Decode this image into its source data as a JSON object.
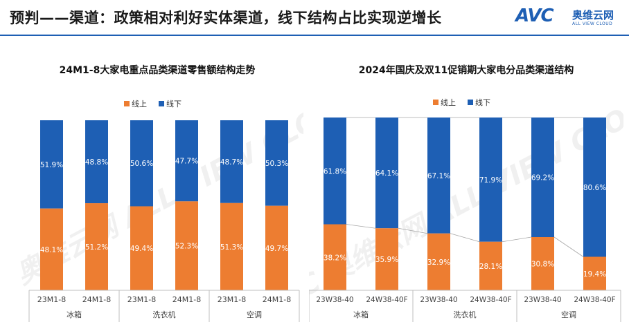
{
  "header": {
    "title": "预判——渠道：政策相对利好实体渠道，线下结构占比实现逆增长",
    "logo": {
      "brand": "AVC",
      "cn": "奥维云网",
      "en": "ALL VIEW CLOUD"
    }
  },
  "watermark": "AVC 奥维云网 ALL VIEW CLOUD",
  "colors": {
    "online": "#ed7d31",
    "offline": "#1e5fb4",
    "accent": "#1e5fb4"
  },
  "chart_data": [
    {
      "type": "bar",
      "stacked": true,
      "percent": true,
      "title": "24M1-8大家电重点品类渠道零售额结构走势",
      "legend_position": "top-center",
      "categories": [
        "23M1-8",
        "24M1-8",
        "23M1-8",
        "24M1-8",
        "23M1-8",
        "24M1-8"
      ],
      "groups": [
        {
          "label": "冰箱",
          "span": 2
        },
        {
          "label": "洗衣机",
          "span": 2
        },
        {
          "label": "空调",
          "span": 2
        }
      ],
      "series": [
        {
          "name": "线上",
          "values": [
            48.1,
            51.2,
            49.4,
            52.3,
            51.3,
            49.7
          ],
          "labels": [
            "48.1%",
            "51.2%",
            "49.4%",
            "52.3%",
            "51.3%",
            "49.7%"
          ]
        },
        {
          "name": "线下",
          "values": [
            51.9,
            48.8,
            50.6,
            47.7,
            48.7,
            50.3
          ],
          "labels": [
            "51.9%",
            "48.8%",
            "50.6%",
            "47.7%",
            "48.7%",
            "50.3%"
          ]
        }
      ],
      "ylim": [
        0,
        100
      ],
      "series_lines": false
    },
    {
      "type": "bar",
      "stacked": true,
      "percent": true,
      "title": "2024年国庆及双11促销期大家电分品类渠道结构",
      "legend_position": "top-center",
      "categories": [
        "23W38-40",
        "24W38-40F",
        "23W38-40",
        "24W38-40F",
        "23W38-40",
        "24W38-40F"
      ],
      "groups": [
        {
          "label": "冰箱",
          "span": 2
        },
        {
          "label": "洗衣机",
          "span": 2
        },
        {
          "label": "空调",
          "span": 2
        }
      ],
      "series": [
        {
          "name": "线上",
          "values": [
            38.2,
            35.9,
            32.9,
            28.1,
            30.8,
            19.4
          ],
          "labels": [
            "38.2%",
            "35.9%",
            "32.9%",
            "28.1%",
            "30.8%",
            "19.4%"
          ]
        },
        {
          "name": "线下",
          "values": [
            61.8,
            64.1,
            67.1,
            71.9,
            69.2,
            80.6
          ],
          "labels": [
            "61.8%",
            "64.1%",
            "67.1%",
            "71.9%",
            "69.2%",
            "80.6%"
          ]
        }
      ],
      "ylim": [
        0,
        100
      ],
      "series_lines": true
    }
  ]
}
